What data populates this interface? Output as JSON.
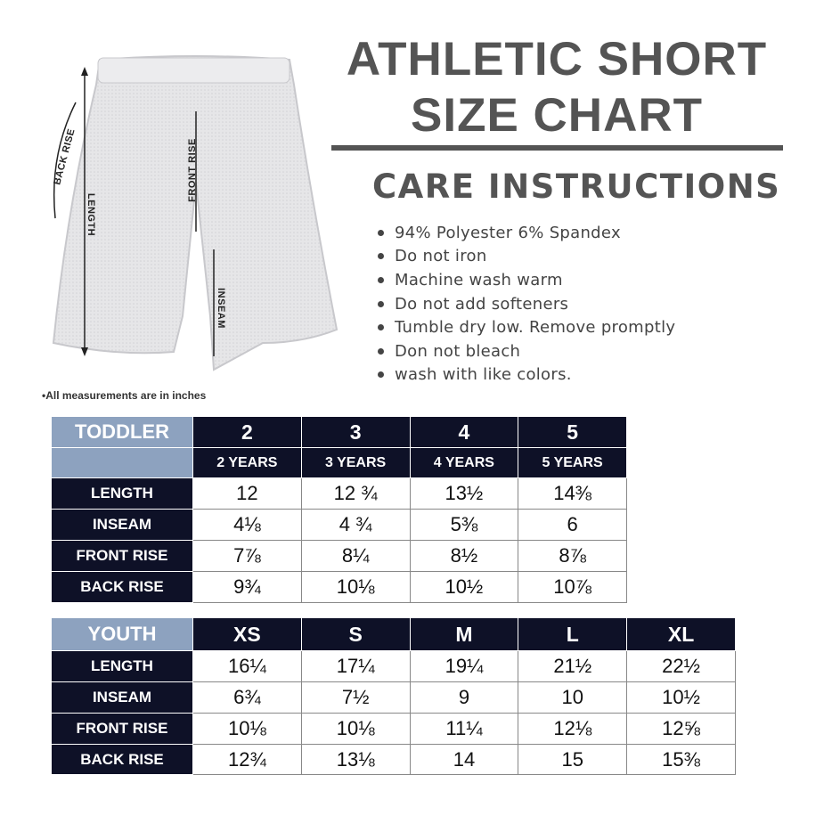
{
  "title_line1": "ATHLETIC SHORT",
  "title_line2": "SIZE CHART",
  "care": {
    "heading": "CARE INSTRUCTIONS",
    "items": [
      "94% Polyester 6% Spandex",
      "Do not iron",
      "Machine wash warm",
      "Do not add softeners",
      "Tumble dry low. Remove promptly",
      "Don not bleach",
      "wash with like colors."
    ]
  },
  "diagram": {
    "back_rise": "BACK RISE",
    "length": "LENGTH",
    "front_rise": "FRONT RISE",
    "inseam": "INSEAM"
  },
  "note": "•All measurements are in inches",
  "toddler": {
    "category": "TODDLER",
    "sizes": [
      "2",
      "3",
      "4",
      "5"
    ],
    "ages": [
      "2 YEARS",
      "3 YEARS",
      "4 YEARS",
      "5 YEARS"
    ],
    "rows": [
      {
        "label": "LENGTH",
        "values": [
          "12",
          "12 ¾",
          "13½",
          "14⅜"
        ]
      },
      {
        "label": "INSEAM",
        "values": [
          "4⅛",
          "4 ¾",
          "5⅜",
          "6"
        ]
      },
      {
        "label": "FRONT RISE",
        "values": [
          "7⅞",
          "8¼",
          "8½",
          "8⅞"
        ]
      },
      {
        "label": "BACK RISE",
        "values": [
          "9¾",
          "10⅛",
          "10½",
          "10⅞"
        ]
      }
    ]
  },
  "youth": {
    "category": "YOUTH",
    "sizes": [
      "XS",
      "S",
      "M",
      "L",
      "XL"
    ],
    "rows": [
      {
        "label": "LENGTH",
        "values": [
          "16¼",
          "17¼",
          "19¼",
          "21½",
          "22½"
        ]
      },
      {
        "label": "INSEAM",
        "values": [
          "6¾",
          "7½",
          "9",
          "10",
          "10½"
        ]
      },
      {
        "label": "FRONT RISE",
        "values": [
          "10⅛",
          "10⅛",
          "11¼",
          "12⅛",
          "12⅝"
        ]
      },
      {
        "label": "BACK RISE",
        "values": [
          "12¾",
          "13⅛",
          "14",
          "15",
          "15⅜"
        ]
      }
    ]
  }
}
